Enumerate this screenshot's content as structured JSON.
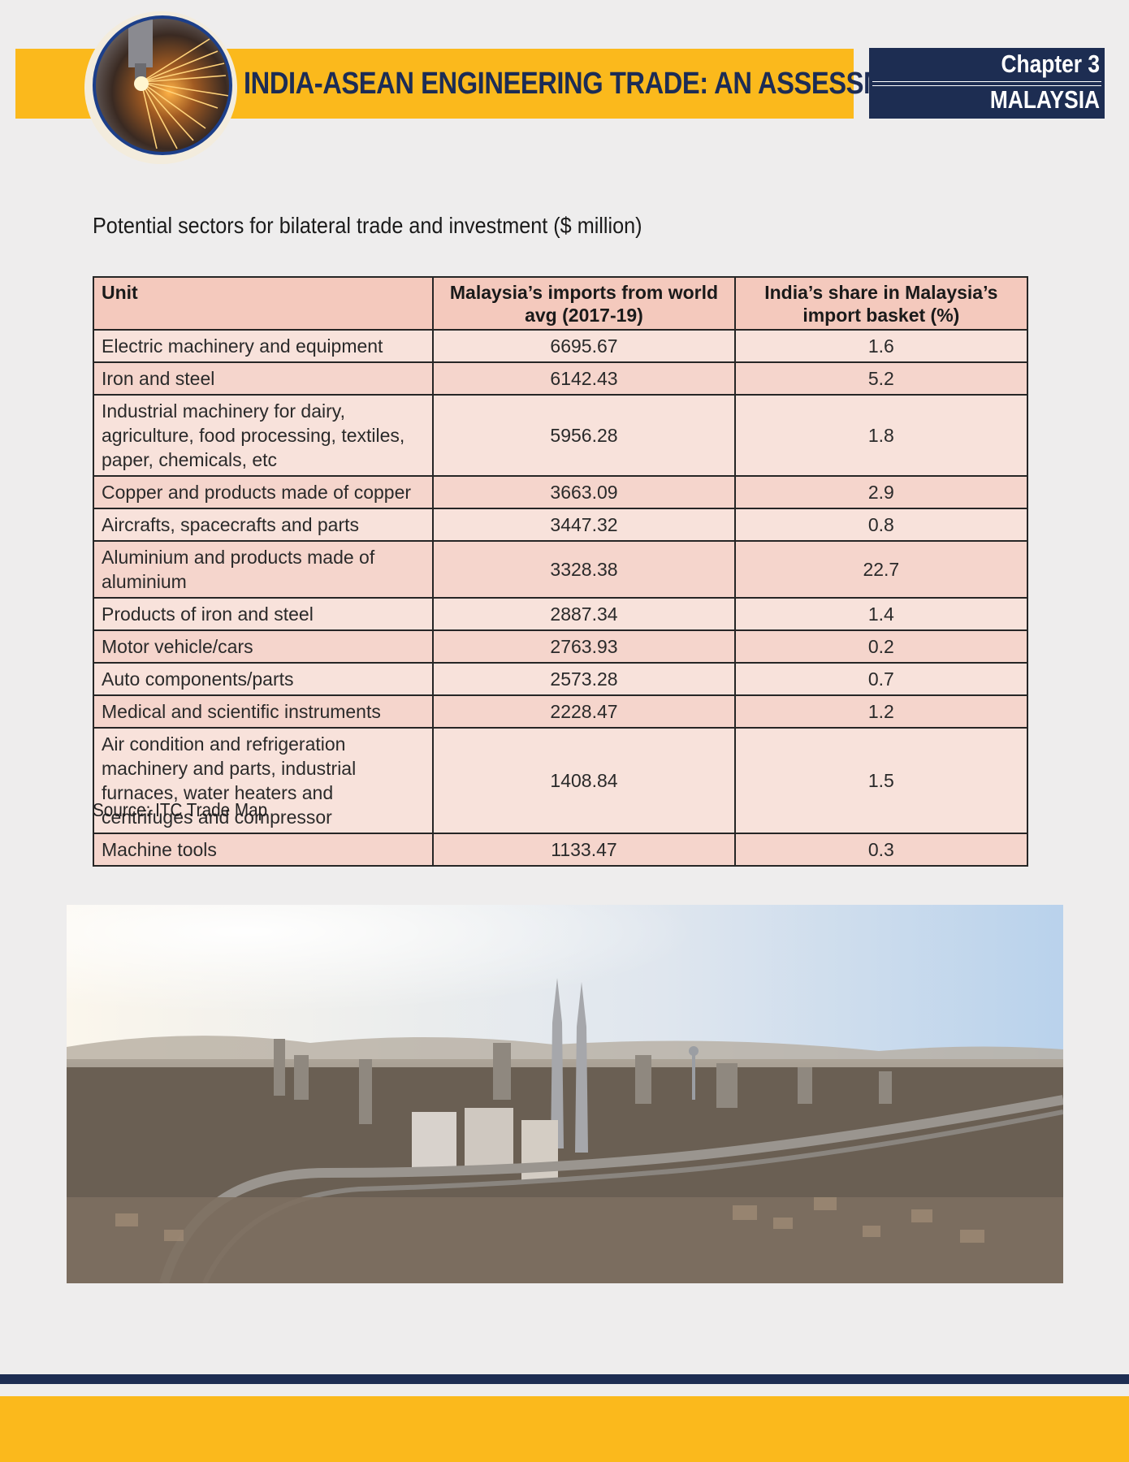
{
  "header": {
    "title": "INDIA-ASEAN ENGINEERING TRADE: AN ASSESSMENT",
    "chapter": "Chapter 3",
    "country": "MALAYSIA"
  },
  "section": {
    "title": "Potential sectors for bilateral trade and investment ($ million)",
    "source": "Source: ITC Trade Map"
  },
  "table": {
    "headers": [
      "Unit",
      "Malaysia’s imports from world avg (2017-19)",
      "India’s share in Malaysia’s import basket (%)"
    ],
    "rows": [
      {
        "unit": "Electric machinery and equipment",
        "imports": "6695.67",
        "share": "1.6"
      },
      {
        "unit": "Iron and steel",
        "imports": "6142.43",
        "share": "5.2"
      },
      {
        "unit": "Industrial machinery for dairy, agriculture, food processing, textiles, paper, chemicals, etc",
        "imports": "5956.28",
        "share": "1.8"
      },
      {
        "unit": "Copper and products made of copper",
        "imports": "3663.09",
        "share": "2.9"
      },
      {
        "unit": "Aircrafts, spacecrafts and parts",
        "imports": "3447.32",
        "share": "0.8"
      },
      {
        "unit": "Aluminium and products made of aluminium",
        "imports": "3328.38",
        "share": "22.7"
      },
      {
        "unit": "Products of iron and steel",
        "imports": "2887.34",
        "share": "1.4"
      },
      {
        "unit": "Motor vehicle/cars",
        "imports": "2763.93",
        "share": "0.2"
      },
      {
        "unit": "Auto components/parts",
        "imports": "2573.28",
        "share": "0.7"
      },
      {
        "unit": "Medical and scientific instruments",
        "imports": "2228.47",
        "share": "1.2"
      },
      {
        "unit": "Air condition and refrigeration machinery and parts, industrial furnaces, water heaters and centrifuges and compressor",
        "imports": "1408.84",
        "share": "1.5"
      },
      {
        "unit": "Machine tools",
        "imports": "1133.47",
        "share": "0.3"
      }
    ]
  },
  "colors": {
    "gold": "#fbb91c",
    "navy": "#1d2d52",
    "header_row": "#f4c9bd",
    "row_light": "#f8e2db",
    "row_dark": "#f5d5cc"
  },
  "images": {
    "header_icon": "welding-sparks-icon",
    "photo": "city-skyline-photo"
  }
}
